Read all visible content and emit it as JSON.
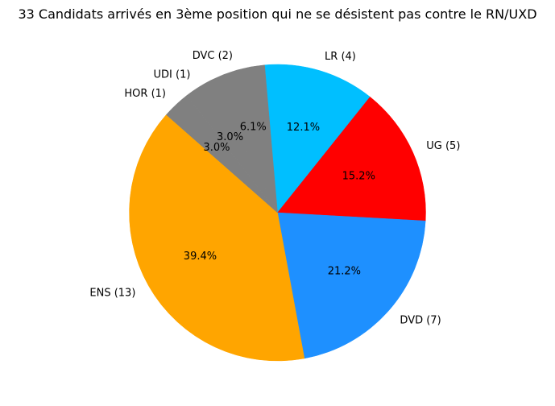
{
  "chart_data": {
    "type": "pie",
    "title": "33 Candidats arrivés en 3ème position qui ne se désistent pas contre le RN/UXD",
    "slices": [
      {
        "label": "LR (4)",
        "value": 4,
        "percent_label": "12.1%",
        "color": "#00BFFF"
      },
      {
        "label": "UG (5)",
        "value": 5,
        "percent_label": "15.2%",
        "color": "#FF0000"
      },
      {
        "label": "DVD (7)",
        "value": 7,
        "percent_label": "21.2%",
        "color": "#1E90FF"
      },
      {
        "label": "ENS (13)",
        "value": 13,
        "percent_label": "39.4%",
        "color": "#FFA500"
      },
      {
        "label": "HOR (1)",
        "value": 1,
        "percent_label": "3.0%",
        "color": "#808080"
      },
      {
        "label": "UDI (1)",
        "value": 1,
        "percent_label": "3.0%",
        "color": "#808080"
      },
      {
        "label": "DVC (2)",
        "value": 2,
        "percent_label": "6.1%",
        "color": "#808080"
      }
    ],
    "start_angle_deg": 95,
    "direction": "clockwise",
    "total": 33
  }
}
